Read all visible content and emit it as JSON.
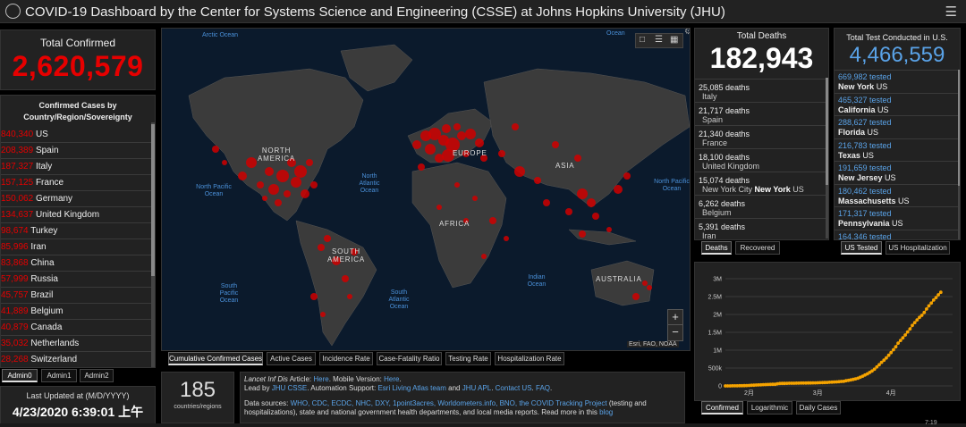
{
  "header": {
    "title": "COVID-19 Dashboard by the Center for Systems Science and Engineering (CSSE) at Johns Hopkins University (JHU)",
    "menu_icon": "hamburger-icon"
  },
  "total_confirmed": {
    "label": "Total Confirmed",
    "value": "2,620,579"
  },
  "confirmed_list": {
    "heading_line1": "Confirmed Cases by",
    "heading_line2": "Country/Region/Sovereignty",
    "rows": [
      {
        "n": "840,340",
        "c": "US"
      },
      {
        "n": "208,389",
        "c": "Spain"
      },
      {
        "n": "187,327",
        "c": "Italy"
      },
      {
        "n": "157,125",
        "c": "France"
      },
      {
        "n": "150,062",
        "c": "Germany"
      },
      {
        "n": "134,637",
        "c": "United Kingdom"
      },
      {
        "n": "98,674",
        "c": "Turkey"
      },
      {
        "n": "85,996",
        "c": "Iran"
      },
      {
        "n": "83,868",
        "c": "China"
      },
      {
        "n": "57,999",
        "c": "Russia"
      },
      {
        "n": "45,757",
        "c": "Brazil"
      },
      {
        "n": "41,889",
        "c": "Belgium"
      },
      {
        "n": "40,879",
        "c": "Canada"
      },
      {
        "n": "35,032",
        "c": "Netherlands"
      },
      {
        "n": "28,268",
        "c": "Switzerland"
      }
    ]
  },
  "admin_tabs": [
    "Admin0",
    "Admin1",
    "Admin2"
  ],
  "last_updated": {
    "label": "Last Updated at (M/D/YYYY)",
    "value": "4/23/2020 6:39:01 上午"
  },
  "countries_count": {
    "value": "185",
    "label": "countries/regions"
  },
  "map": {
    "ocean_labels": {
      "arctic": "Arctic Ocean",
      "north_pacific": "North Pacific Ocean",
      "north_atlantic": "North Atlantic Ocean",
      "south_pacific": "South Pacific Ocean",
      "south_atlantic": "South Atlantic Ocean",
      "indian": "Indian Ocean",
      "ocean_top_right": "Ocean"
    },
    "continent_labels": {
      "north_america": "NORTH AMERICA",
      "south_america": "SOUTH AMERICA",
      "europe": "EUROPE",
      "africa": "AFRICA",
      "asia": "ASIA",
      "australia": "AUSTRALIA"
    },
    "attribution": "Esri, FAO, NOAA",
    "zoom_in": "+",
    "zoom_out": "−",
    "tabs": [
      "Cumulative Confirmed Cases",
      "Active Cases",
      "Incidence Rate",
      "Case-Fatality Ratio",
      "Testing Rate",
      "Hospitalization Rate"
    ]
  },
  "info": {
    "line1_prefix": "Lancet Inf Dis",
    "line1_rest": " Article: ",
    "here1": "Here",
    "mobile": ". Mobile Version: ",
    "here2": "Here",
    "line2_prefix": "Lead by ",
    "jhu_csse": "JHU CSSE",
    "automation": ". Automation Support: ",
    "esri": "Esri Living Atlas team",
    "and": " and ",
    "jhu_apl": "JHU APL",
    "sep": ". ",
    "contact": "Contact US",
    "sep2": ". ",
    "faq": "FAQ",
    "dot": ".",
    "line3_prefix": "Data sources: ",
    "sources": "WHO, CDC, ECDC, NHC, DXY, 1point3acres, Worldometers.info, BNO, the COVID Tracking Project",
    "line3_rest": " (testing and",
    "line4": "hospitalizations), state and national government health departments, and local media reports. Read more in this ",
    "blog": "blog"
  },
  "deaths": {
    "label": "Total Deaths",
    "value": "182,943",
    "rows": [
      {
        "n": "25,085 deaths",
        "p": "Italy"
      },
      {
        "n": "21,717 deaths",
        "p": "Spain"
      },
      {
        "n": "21,340 deaths",
        "p": "France"
      },
      {
        "n": "18,100 deaths",
        "p": "United Kingdom"
      },
      {
        "n": "15,074 deaths",
        "p": "New York City ",
        "b": "New York",
        "s": " US"
      },
      {
        "n": "6,262 deaths",
        "p": "Belgium"
      },
      {
        "n": "5,391 deaths",
        "p": "Iran"
      }
    ],
    "tabs": [
      "Deaths",
      "Recovered"
    ]
  },
  "tests": {
    "label": "Total Test Conducted in U.S.",
    "value": "4,466,559",
    "rows": [
      {
        "v": "669,982 tested",
        "b": "New York",
        "s": " US"
      },
      {
        "v": "465,327 tested",
        "b": "California",
        "s": " US"
      },
      {
        "v": "288,627 tested",
        "b": "Florida",
        "s": " US"
      },
      {
        "v": "216,783 tested",
        "b": "Texas",
        "s": " US"
      },
      {
        "v": "191,659 tested",
        "b": "New Jersey",
        "s": " US"
      },
      {
        "v": "180,462 tested",
        "b": "Massachusetts",
        "s": " US"
      },
      {
        "v": "171,317 tested",
        "b": "Pennsylvania",
        "s": " US"
      },
      {
        "v": "164,346 tested",
        "b": "",
        "s": ""
      }
    ],
    "tabs": [
      "US Tested",
      "US Hospitalization"
    ]
  },
  "chart_tabs": [
    "Confirmed",
    "Logarithmic",
    "Daily Cases"
  ],
  "taskbar_time": "7:19",
  "colors": {
    "accent_red": "#e60000",
    "test_blue": "#5aa3e8",
    "chart_orange": "#f5a300"
  },
  "chart_data": {
    "type": "line",
    "xlabel": "",
    "ylabel": "",
    "x_tick_labels": [
      "2月",
      "3月",
      "4月"
    ],
    "y_tick_labels": [
      "0",
      "500k",
      "1M",
      "1.5M",
      "2M",
      "2.5M",
      "3M"
    ],
    "ylim": [
      0,
      3000000
    ],
    "x_range_days": [
      0,
      96
    ],
    "x_ticks_days": [
      10,
      39,
      70
    ],
    "series": [
      {
        "values": [
          555,
          654,
          941,
          1434,
          2118,
          2927,
          5578,
          6166,
          8234,
          9927,
          12038,
          16787,
          19881,
          23892,
          27635,
          30794,
          34391,
          37120,
          40150,
          42762,
          44802,
          45221,
          60368,
          66885,
          69030,
          71224,
          73258,
          75136,
          75639,
          76197,
          76819,
          78572,
          78958,
          79561,
          80406,
          81388,
          82746,
          84112,
          86011,
          88369,
          90306,
          92840,
          95120,
          97886,
          101801,
          105847,
          109821,
          113590,
          118620,
          125875,
          128352,
          145205,
          156101,
          167454,
          181574,
          197102,
          214821,
          242570,
          272208,
          304507,
          336953,
          378235,
          418045,
          467653,
          529591,
          593291,
          660706,
          720117,
          782365,
          857487,
          932605,
          1013466,
          1095917,
          1197405,
          1272115,
          1345048,
          1426096,
          1511104,
          1595350,
          1691719,
          1771514,
          1846680,
          1917320,
          1976192,
          2056055,
          2152437,
          2240190,
          2317759,
          2401378,
          2472259,
          2549123,
          2620579
        ],
        "grid": true
      }
    ]
  }
}
